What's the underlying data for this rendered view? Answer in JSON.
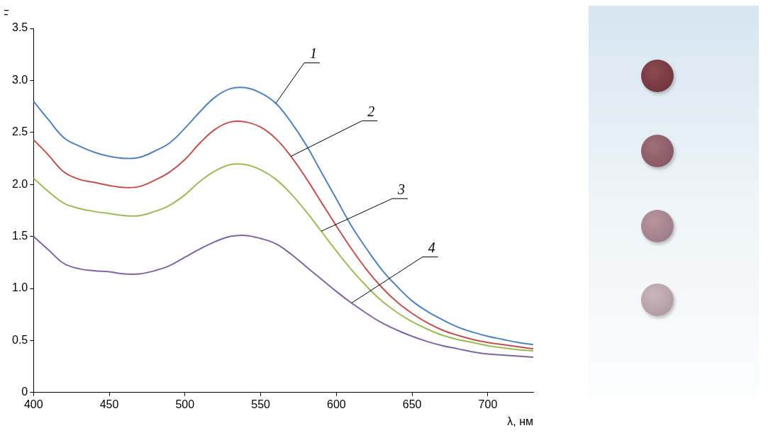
{
  "chart_data": {
    "type": "line",
    "x_label": "λ, нм",
    "y_label": "F",
    "x": [
      400,
      410,
      420,
      430,
      440,
      450,
      460,
      470,
      480,
      490,
      500,
      510,
      520,
      530,
      540,
      550,
      560,
      570,
      580,
      590,
      600,
      610,
      620,
      630,
      640,
      650,
      660,
      670,
      680,
      690,
      700,
      710,
      720,
      730
    ],
    "series": [
      {
        "name": "1",
        "color": "#4f81bd",
        "values": [
          2.8,
          2.62,
          2.45,
          2.37,
          2.31,
          2.27,
          2.25,
          2.26,
          2.32,
          2.4,
          2.54,
          2.7,
          2.84,
          2.92,
          2.93,
          2.88,
          2.78,
          2.6,
          2.38,
          2.12,
          1.86,
          1.6,
          1.38,
          1.18,
          1.02,
          0.88,
          0.78,
          0.7,
          0.63,
          0.58,
          0.54,
          0.51,
          0.48,
          0.46
        ]
      },
      {
        "name": "2",
        "color": "#c0504d",
        "values": [
          2.43,
          2.28,
          2.12,
          2.05,
          2.02,
          1.99,
          1.97,
          1.98,
          2.04,
          2.12,
          2.24,
          2.4,
          2.53,
          2.6,
          2.6,
          2.55,
          2.44,
          2.27,
          2.06,
          1.83,
          1.6,
          1.38,
          1.18,
          1.01,
          0.87,
          0.76,
          0.67,
          0.6,
          0.55,
          0.51,
          0.48,
          0.46,
          0.44,
          0.42
        ]
      },
      {
        "name": "3",
        "color": "#9bbb59",
        "values": [
          2.06,
          1.93,
          1.82,
          1.77,
          1.74,
          1.72,
          1.7,
          1.7,
          1.74,
          1.8,
          1.9,
          2.03,
          2.13,
          2.19,
          2.19,
          2.14,
          2.05,
          1.91,
          1.74,
          1.55,
          1.36,
          1.18,
          1.02,
          0.88,
          0.77,
          0.68,
          0.61,
          0.55,
          0.51,
          0.48,
          0.45,
          0.43,
          0.41,
          0.4
        ]
      },
      {
        "name": "4",
        "color": "#8064a2",
        "values": [
          1.5,
          1.37,
          1.24,
          1.19,
          1.17,
          1.16,
          1.14,
          1.14,
          1.17,
          1.22,
          1.3,
          1.38,
          1.45,
          1.5,
          1.51,
          1.48,
          1.43,
          1.33,
          1.21,
          1.09,
          0.97,
          0.86,
          0.76,
          0.67,
          0.6,
          0.54,
          0.49,
          0.45,
          0.42,
          0.39,
          0.37,
          0.36,
          0.35,
          0.34
        ]
      }
    ],
    "xlim": [
      400,
      730
    ],
    "xticks": [
      400,
      450,
      500,
      550,
      600,
      650,
      700
    ],
    "ylim": [
      0,
      3.5
    ],
    "yticks": [
      0,
      0.5,
      {
        "value": 1,
        "label": "1.0"
      },
      1.5,
      {
        "value": 2,
        "label": "2.0"
      },
      2.5,
      {
        "value": 3,
        "label": "3.0"
      },
      3.5
    ],
    "grid": false
  }
}
